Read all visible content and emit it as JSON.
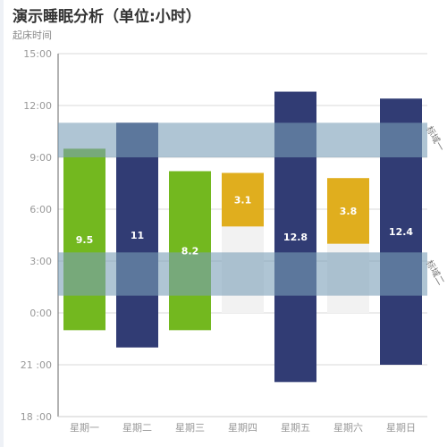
{
  "chart_data": {
    "type": "bar",
    "title": "演示睡眠分析（单位:小时）",
    "subtitle": "起床时间",
    "y_ticks": [
      "18 :00",
      "21 :00",
      "0:00",
      "3:00",
      "6:00",
      "9:00",
      "12:00",
      "15:00"
    ],
    "y_tick_values": [
      -6,
      -3,
      0,
      3,
      6,
      9,
      12,
      15
    ],
    "ylim": [
      -6,
      15
    ],
    "categories": [
      "星期一",
      "星期二",
      "星期三",
      "星期四",
      "星期五",
      "星期六",
      "星期日"
    ],
    "bars": [
      {
        "start": -1,
        "end": 9.5,
        "label": "9.5",
        "color": "#73b81f"
      },
      {
        "start": -2,
        "end": 11,
        "label": "11",
        "color": "#313c74"
      },
      {
        "start": -1,
        "end": 8.2,
        "label": "8.2",
        "color": "#73b81f"
      },
      {
        "start": 5,
        "end": 8.1,
        "label": "3.1",
        "color": "#e0ae1e"
      },
      {
        "start": -4,
        "end": 12.8,
        "label": "12.8",
        "color": "#313c74"
      },
      {
        "start": 4,
        "end": 7.8,
        "label": "3.8",
        "color": "#e0ae1e"
      },
      {
        "start": -3,
        "end": 12.4,
        "label": "12.4",
        "color": "#313c74"
      }
    ],
    "ghost_bars": [
      {
        "index": 3,
        "start": 0,
        "end": 5
      },
      {
        "index": 5,
        "start": 0,
        "end": 4
      }
    ],
    "mark_areas": [
      {
        "name": "标域一",
        "from": 9,
        "to": 11,
        "color": "#7a9fb8"
      },
      {
        "name": "标域二",
        "from": 1,
        "to": 3.5,
        "color": "#7a9fb8"
      }
    ],
    "grid": true,
    "colors": {
      "green": "#73b81f",
      "navy": "#313c74",
      "yellow": "#e0ae1e",
      "band": "#7a9fb8"
    }
  }
}
